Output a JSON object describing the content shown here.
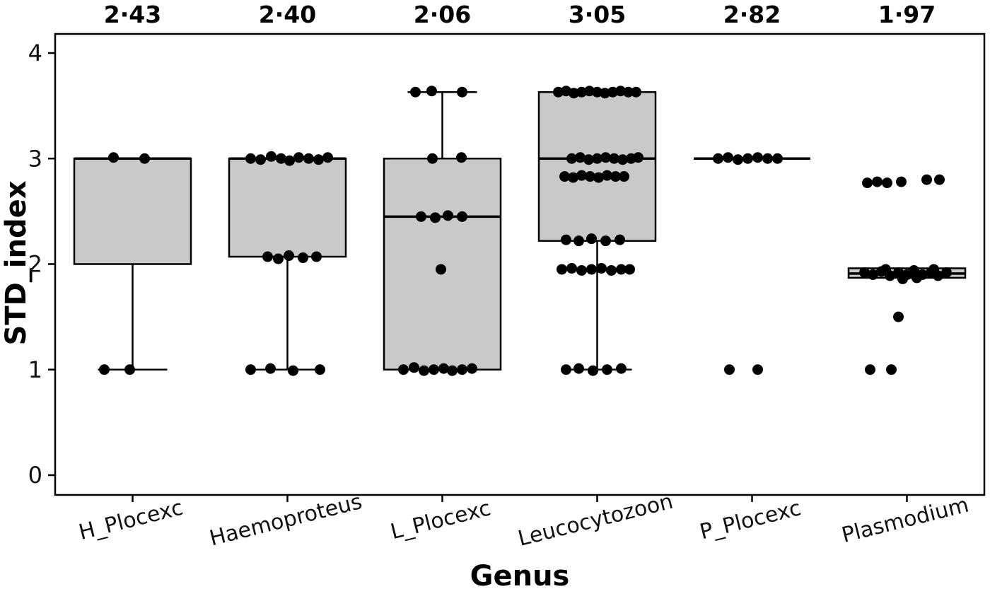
{
  "figure": {
    "background": "#ffffff"
  },
  "chart_data": {
    "type": "boxplot",
    "title": "",
    "xlabel": "Genus",
    "ylabel": "STD_index",
    "ylim": [
      -0.18,
      4.18
    ],
    "y_ticks": [
      0,
      1,
      2,
      3,
      4
    ],
    "grid": false,
    "legend": false,
    "box_fill": "#c9c9c9",
    "stroke_color": "#000000",
    "point_color": "#000000",
    "groups": [
      {
        "label": "H_Plocexc",
        "mean_label": "2·43",
        "mean": 2.43,
        "box": {
          "q1": 2.0,
          "median": 3.0,
          "q3": 3.0,
          "whisker_low": 1.0,
          "whisker_high": 3.0
        },
        "points": [
          [
            -27,
            3.01
          ],
          [
            17,
            3.0
          ],
          [
            -40,
            1.0
          ],
          [
            -4,
            1.0
          ]
        ]
      },
      {
        "label": "Haemoproteus",
        "mean_label": "2·40",
        "mean": 2.4,
        "box": {
          "q1": 2.07,
          "median": 3.0,
          "q3": 3.0,
          "whisker_low": 1.0,
          "whisker_high": 3.0
        },
        "points": [
          [
            -52,
            3.0
          ],
          [
            -38,
            2.99
          ],
          [
            -23,
            3.02
          ],
          [
            -9,
            3.0
          ],
          [
            3,
            2.98
          ],
          [
            16,
            3.01
          ],
          [
            30,
            3.0
          ],
          [
            44,
            2.99
          ],
          [
            57,
            3.01
          ],
          [
            -28,
            2.07
          ],
          [
            -13,
            2.05
          ],
          [
            2,
            2.08
          ],
          [
            22,
            2.06
          ],
          [
            41,
            2.07
          ],
          [
            -52,
            1.0
          ],
          [
            -24,
            1.01
          ],
          [
            8,
            0.99
          ],
          [
            46,
            1.0
          ]
        ]
      },
      {
        "label": "L_Plocexc",
        "mean_label": "2·06",
        "mean": 2.06,
        "box": {
          "q1": 1.0,
          "median": 2.45,
          "q3": 3.0,
          "whisker_low": 1.0,
          "whisker_high": 3.63
        },
        "points": [
          [
            -38,
            3.63
          ],
          [
            -15,
            3.64
          ],
          [
            28,
            3.63
          ],
          [
            -14,
            3.0
          ],
          [
            27,
            3.01
          ],
          [
            -30,
            2.45
          ],
          [
            -10,
            2.44
          ],
          [
            8,
            2.46
          ],
          [
            28,
            2.45
          ],
          [
            -2,
            1.95
          ],
          [
            -55,
            1.0
          ],
          [
            -40,
            1.02
          ],
          [
            -26,
            0.99
          ],
          [
            -12,
            1.0
          ],
          [
            2,
            1.01
          ],
          [
            14,
            0.99
          ],
          [
            28,
            1.0
          ],
          [
            42,
            1.01
          ]
        ]
      },
      {
        "label": "Leucocytozoon",
        "mean_label": "3·05",
        "mean": 3.05,
        "box": {
          "q1": 2.22,
          "median": 3.0,
          "q3": 3.63,
          "whisker_low": 1.0,
          "whisker_high": 3.63
        },
        "points": [
          [
            -55,
            3.63
          ],
          [
            -44,
            3.64
          ],
          [
            -33,
            3.62
          ],
          [
            -22,
            3.63
          ],
          [
            -11,
            3.64
          ],
          [
            0,
            3.63
          ],
          [
            11,
            3.62
          ],
          [
            22,
            3.63
          ],
          [
            33,
            3.64
          ],
          [
            44,
            3.63
          ],
          [
            55,
            3.63
          ],
          [
            -36,
            3.0
          ],
          [
            -24,
            3.01
          ],
          [
            -12,
            2.99
          ],
          [
            0,
            3.0
          ],
          [
            12,
            3.01
          ],
          [
            24,
            3.0
          ],
          [
            36,
            2.99
          ],
          [
            48,
            3.0
          ],
          [
            58,
            3.01
          ],
          [
            -46,
            2.83
          ],
          [
            -34,
            2.82
          ],
          [
            -22,
            2.84
          ],
          [
            -10,
            2.83
          ],
          [
            2,
            2.82
          ],
          [
            14,
            2.84
          ],
          [
            26,
            2.83
          ],
          [
            38,
            2.83
          ],
          [
            -44,
            2.23
          ],
          [
            -26,
            2.22
          ],
          [
            -8,
            2.24
          ],
          [
            12,
            2.22
          ],
          [
            32,
            2.23
          ],
          [
            -50,
            1.95
          ],
          [
            -36,
            1.96
          ],
          [
            -22,
            1.94
          ],
          [
            -8,
            1.95
          ],
          [
            6,
            1.96
          ],
          [
            20,
            1.94
          ],
          [
            34,
            1.95
          ],
          [
            46,
            1.95
          ],
          [
            -44,
            1.0
          ],
          [
            -26,
            1.01
          ],
          [
            -6,
            0.99
          ],
          [
            14,
            1.0
          ],
          [
            34,
            1.01
          ]
        ]
      },
      {
        "label": "P_Plocexc",
        "mean_label": "2·82",
        "mean": 2.82,
        "box": {
          "q1": 3.0,
          "median": 3.0,
          "q3": 3.0,
          "whisker_low": 3.0,
          "whisker_high": 3.0
        },
        "points": [
          [
            -48,
            3.0
          ],
          [
            -34,
            3.01
          ],
          [
            -20,
            2.99
          ],
          [
            -6,
            3.0
          ],
          [
            8,
            3.01
          ],
          [
            22,
            3.0
          ],
          [
            36,
            3.0
          ],
          [
            -32,
            1.0
          ],
          [
            8,
            1.0
          ]
        ]
      },
      {
        "label": "Plasmodium",
        "mean_label": "1·97",
        "mean": 1.97,
        "box": {
          "q1": 1.87,
          "median": 1.91,
          "q3": 1.96,
          "whisker_low": 1.87,
          "whisker_high": 1.96
        },
        "points": [
          [
            -56,
            2.77
          ],
          [
            -42,
            2.78
          ],
          [
            -28,
            2.77
          ],
          [
            -8,
            2.78
          ],
          [
            28,
            2.8
          ],
          [
            46,
            2.8
          ],
          [
            -60,
            1.92
          ],
          [
            -48,
            1.9
          ],
          [
            -36,
            1.93
          ],
          [
            -24,
            1.89
          ],
          [
            -12,
            1.92
          ],
          [
            0,
            1.9
          ],
          [
            10,
            1.94
          ],
          [
            22,
            1.9
          ],
          [
            34,
            1.92
          ],
          [
            44,
            1.89
          ],
          [
            56,
            1.92
          ],
          [
            -30,
            1.95
          ],
          [
            14,
            1.87
          ],
          [
            38,
            1.95
          ],
          [
            -6,
            1.86
          ],
          [
            -12,
            1.5
          ],
          [
            -52,
            1.0
          ],
          [
            -22,
            1.0
          ]
        ]
      }
    ]
  }
}
